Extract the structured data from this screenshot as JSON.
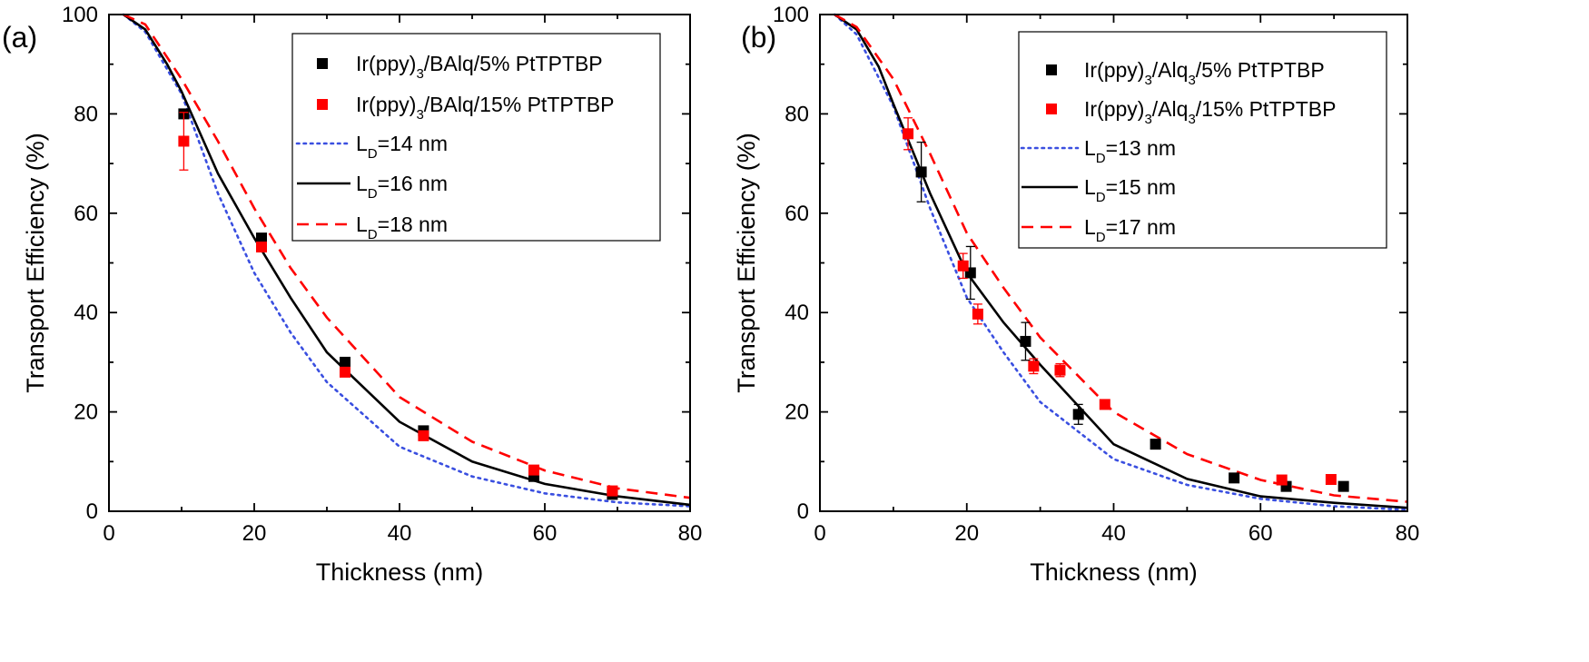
{
  "chart_data": [
    {
      "type": "scatter",
      "panel_label": "(a)",
      "xlabel": "Thickness (nm)",
      "ylabel": "Transport Efficiency (%)",
      "xlim": [
        0,
        80
      ],
      "ylim": [
        0,
        100
      ],
      "xticks": [
        0,
        20,
        40,
        60,
        80
      ],
      "yticks": [
        0,
        20,
        40,
        60,
        80,
        100
      ],
      "legend_position": "top-right",
      "points": [
        {
          "name_main": "Ir(ppy)",
          "name_sub": "3",
          "name_rest": "/BAlq/5% PtTPTBP",
          "color": "#000000",
          "x": [
            10.3,
            21.0,
            32.5,
            43.3,
            58.5,
            69.3
          ],
          "y": [
            80,
            55,
            30,
            16.2,
            7.0,
            3.4
          ],
          "err": [
            0,
            0,
            0,
            0,
            0,
            0
          ]
        },
        {
          "name_main": "Ir(ppy)",
          "name_sub": "3",
          "name_rest": "/BAlq/15% PtTPTBP",
          "color": "#ff0000",
          "x": [
            10.3,
            21.0,
            32.5,
            43.3,
            58.5,
            69.3
          ],
          "y": [
            74.5,
            53.2,
            28.0,
            15.2,
            8.3,
            4.1
          ],
          "err": [
            5.8,
            0,
            0,
            0,
            0,
            0
          ]
        }
      ],
      "curves": [
        {
          "name_main": "L",
          "name_sub": "D",
          "name_rest": "=14 nm",
          "color": "#3a4fe0",
          "style": "dotted",
          "x": [
            2,
            5,
            10,
            15,
            20,
            25,
            30,
            40,
            50,
            60,
            70,
            80
          ],
          "y": [
            100,
            96.5,
            84,
            64,
            48,
            36,
            26,
            13,
            7,
            3.6,
            1.8,
            1.0
          ]
        },
        {
          "name_main": "L",
          "name_sub": "D",
          "name_rest": "=16 nm",
          "color": "#000000",
          "style": "solid",
          "x": [
            2,
            5,
            8,
            10,
            15,
            20,
            25,
            30,
            40,
            50,
            60,
            70,
            80
          ],
          "y": [
            100,
            97,
            90,
            84.5,
            68,
            55,
            43,
            32,
            18,
            10,
            5.5,
            3.0,
            1.3
          ]
        },
        {
          "name_main": "L",
          "name_sub": "D",
          "name_rest": "=18 nm",
          "color": "#ff0000",
          "style": "dashed",
          "x": [
            2,
            5,
            10,
            15,
            20,
            25,
            30,
            40,
            50,
            60,
            70,
            80
          ],
          "y": [
            100,
            98,
            87,
            74.5,
            61,
            49,
            39,
            23,
            14,
            8.2,
            4.6,
            2.7
          ]
        }
      ]
    },
    {
      "type": "scatter",
      "panel_label": "(b)",
      "xlabel": "Thickness (nm)",
      "ylabel": "Transport Efficiency (%)",
      "xlim": [
        0,
        80
      ],
      "ylim": [
        0,
        100
      ],
      "xticks": [
        0,
        20,
        40,
        60,
        80
      ],
      "yticks": [
        0,
        20,
        40,
        60,
        80,
        100
      ],
      "legend_position": "top-right",
      "points": [
        {
          "name_main": "Ir(ppy)",
          "name_sub": "3",
          "name_rest": "/Alq",
          "name_sub2": "3",
          "name_rest2": "/5% PtTPTBP",
          "color": "#000000",
          "x": [
            13.8,
            20.5,
            28.0,
            35.2,
            45.7,
            56.4,
            63.5,
            71.3
          ],
          "y": [
            68.3,
            48.0,
            34.2,
            19.5,
            13.5,
            6.7,
            5.0,
            5.0
          ],
          "err": [
            6,
            5.3,
            3.8,
            2.0,
            0.8,
            0,
            0,
            0
          ]
        },
        {
          "name_main": "Ir(ppy)",
          "name_sub": "3",
          "name_rest": "/Alq",
          "name_sub2": "3",
          "name_rest2": "/15% PtTPTBP",
          "color": "#ff0000",
          "x": [
            12.0,
            19.5,
            21.5,
            29.1,
            32.7,
            38.8,
            62.9,
            69.6
          ],
          "y": [
            76.0,
            49.4,
            39.7,
            29.2,
            28.4,
            21.5,
            6.3,
            6.4
          ],
          "err": [
            3.2,
            2.5,
            2.0,
            1.5,
            1.3,
            0,
            0,
            0
          ]
        }
      ],
      "curves": [
        {
          "name_main": "L",
          "name_sub": "D",
          "name_rest": "=13 nm",
          "color": "#3a4fe0",
          "style": "dotted",
          "x": [
            2,
            5,
            10,
            15,
            20,
            25,
            30,
            40,
            50,
            60,
            70,
            80
          ],
          "y": [
            100,
            96,
            81.5,
            61,
            43,
            32,
            22,
            10.5,
            5.3,
            2.5,
            1.0,
            0.3
          ]
        },
        {
          "name_main": "L",
          "name_sub": "D",
          "name_rest": "=15 nm",
          "color": "#000000",
          "style": "solid",
          "x": [
            2,
            5,
            8,
            10,
            15,
            20,
            25,
            30,
            40,
            50,
            60,
            70,
            80
          ],
          "y": [
            100,
            97,
            89.5,
            82,
            64,
            48,
            38,
            29.5,
            13.5,
            6.5,
            3.0,
            1.7,
            0.7
          ]
        },
        {
          "name_main": "L",
          "name_sub": "D",
          "name_rest": "=17 nm",
          "color": "#ff0000",
          "style": "dashed",
          "x": [
            2,
            5,
            10,
            15,
            20,
            25,
            30,
            40,
            50,
            60,
            70,
            80
          ],
          "y": [
            100,
            97.5,
            87,
            72,
            56,
            45,
            35,
            20,
            11.5,
            6.3,
            3.2,
            1.9
          ]
        }
      ]
    }
  ]
}
